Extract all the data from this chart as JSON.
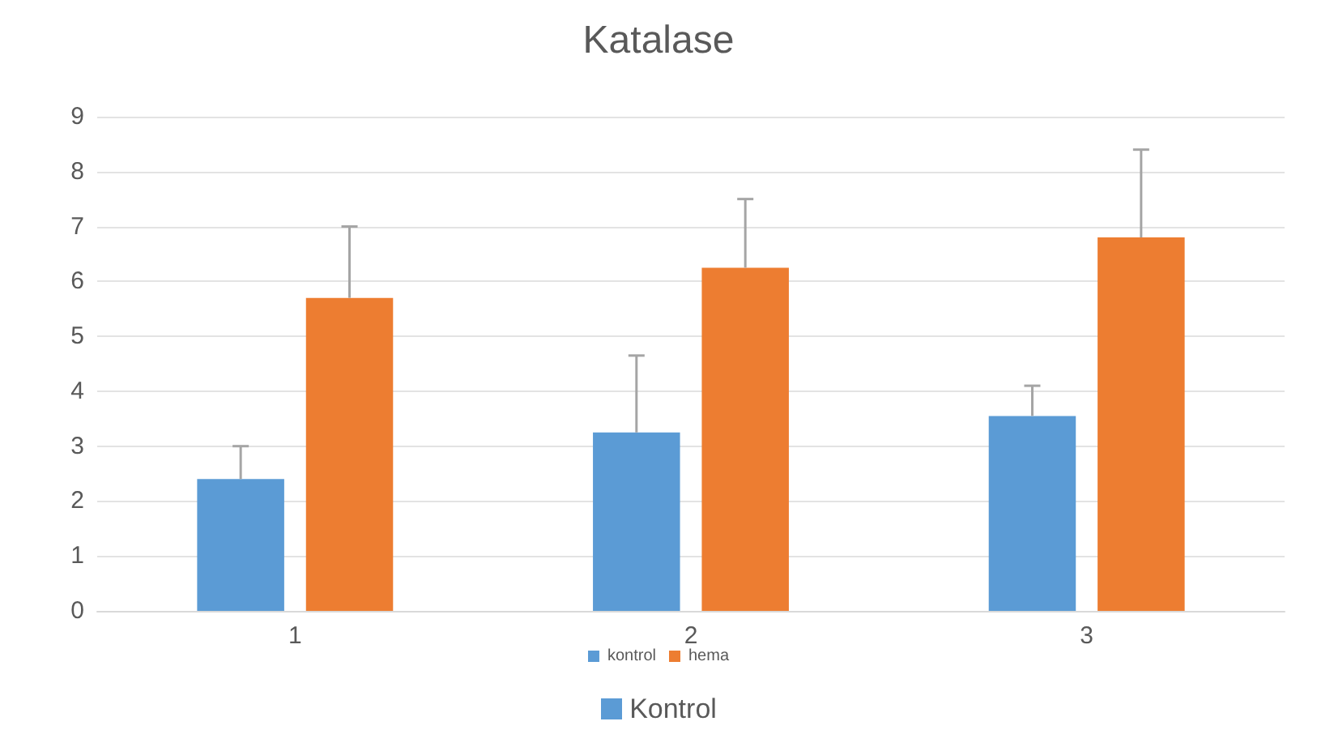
{
  "chart_data": {
    "type": "bar",
    "title": "Katalase",
    "categories": [
      "1",
      "2",
      "3"
    ],
    "series": [
      {
        "name": "kontrol",
        "color": "#5b9bd5",
        "values": [
          2.4,
          3.25,
          3.55
        ],
        "errors": [
          [
            2.4,
            3.0
          ],
          [
            3.25,
            4.65
          ],
          [
            3.55,
            4.1
          ]
        ]
      },
      {
        "name": "hema",
        "color": "#ed7d31",
        "values": [
          5.7,
          6.25,
          6.8
        ],
        "errors": [
          [
            5.7,
            7.0
          ],
          [
            6.25,
            7.5
          ],
          [
            6.8,
            8.4
          ]
        ]
      }
    ],
    "ylim": [
      0,
      9
    ],
    "yticks": [
      0,
      1,
      2,
      3,
      4,
      5,
      6,
      7,
      8,
      9
    ],
    "grid": "y",
    "legend": "bottom",
    "annotations": [
      "Kontrol"
    ]
  }
}
